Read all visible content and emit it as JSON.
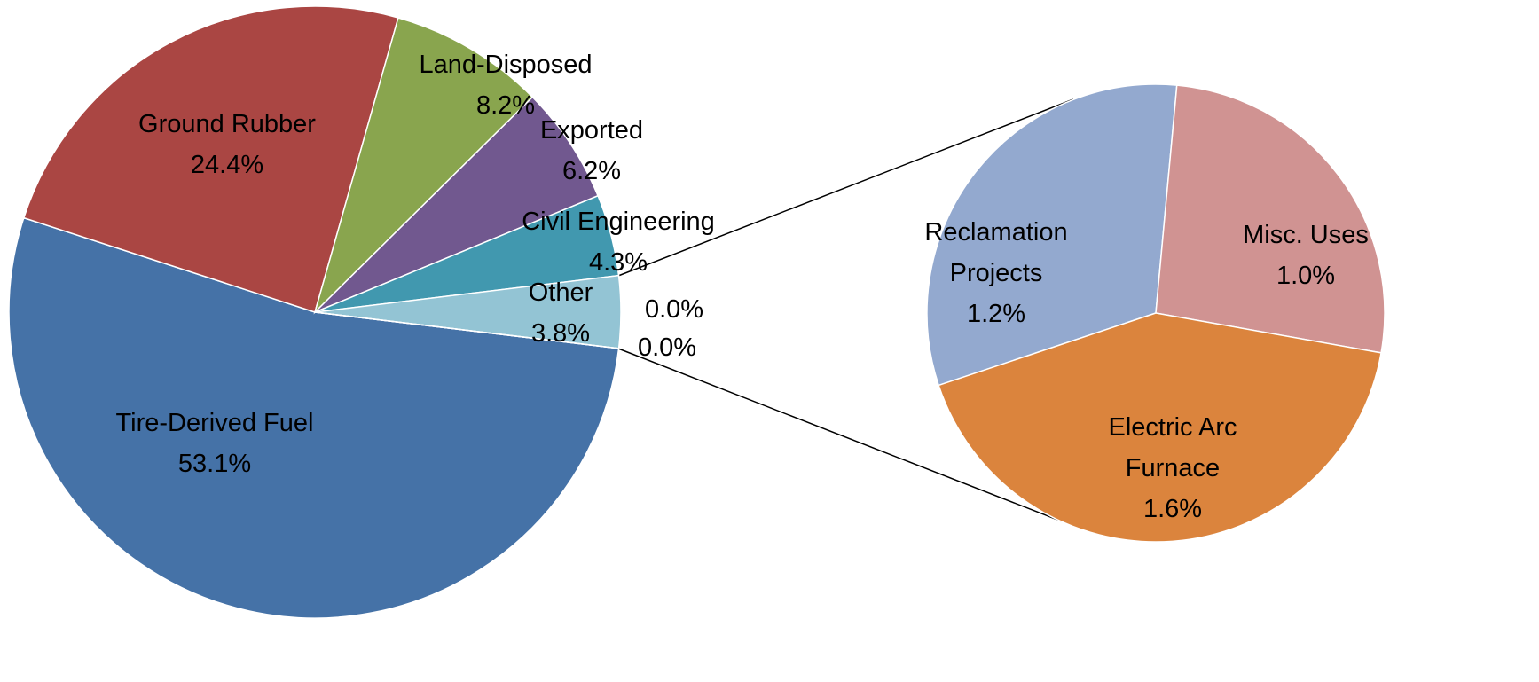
{
  "chart_data": [
    {
      "type": "pie",
      "categories": [
        "Tire-Derived Fuel",
        "Ground Rubber",
        "Land-Disposed",
        "Exported",
        "Civil Engineering",
        "Other",
        null,
        null
      ],
      "values": [
        53.1,
        24.4,
        8.2,
        6.2,
        4.3,
        3.8,
        0,
        0
      ],
      "value_labels": [
        "53.1%",
        "24.4%",
        "8.2%",
        "6.2%",
        "4.3%",
        "3.8%",
        "0.0%",
        "0.0%"
      ],
      "colors": [
        "#4572a7",
        "#aa4643",
        "#89a54e",
        "#71588f",
        "#4198af",
        "#93c4d4",
        "#93c4d4",
        "#93c4d4"
      ]
    },
    {
      "type": "pie",
      "categories": [
        "Reclamation Projects",
        "Misc. Uses",
        "Electric Arc Furnace"
      ],
      "values": [
        1.2,
        1.0,
        1.6
      ],
      "value_labels": [
        "1.2%",
        "1.0%",
        "1.6%"
      ],
      "colors": [
        "#93a9cf",
        "#d09392",
        "#db843d"
      ]
    }
  ]
}
